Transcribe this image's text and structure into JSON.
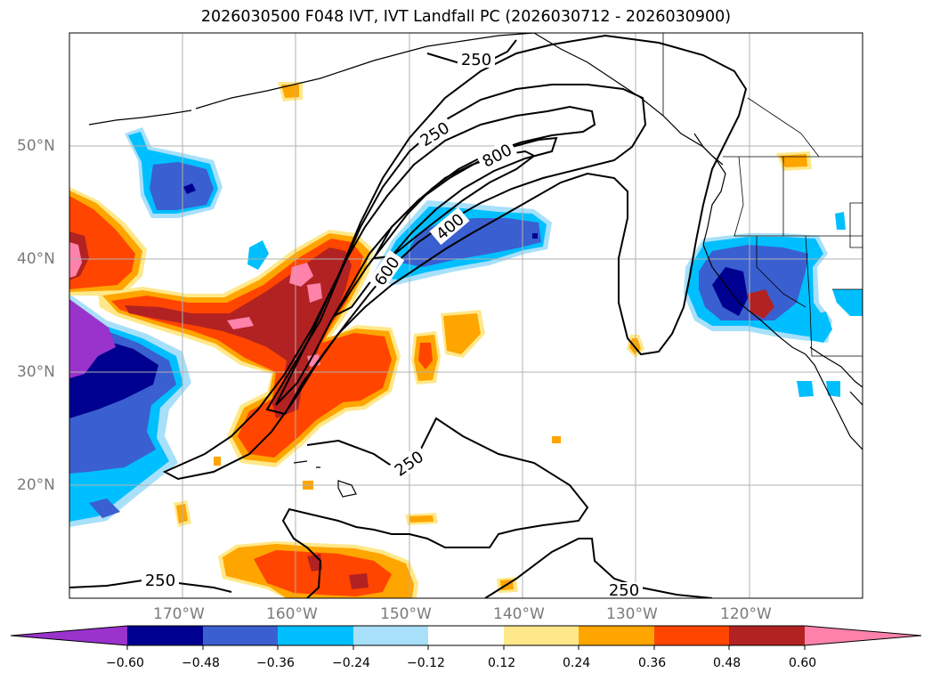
{
  "title": "2026030500 F048 IVT, IVT Landfall PC (2026030712 - 2026030900)",
  "map": {
    "lon_range": [
      -180,
      -110
    ],
    "lat_range": [
      10,
      60
    ],
    "lat_labels": [
      "50°N",
      "40°N",
      "30°N",
      "20°N"
    ],
    "lat_values": [
      50,
      40,
      30,
      20
    ],
    "lon_labels": [
      "170°W",
      "160°W",
      "150°W",
      "140°W",
      "130°W",
      "120°W"
    ],
    "lon_values": [
      -170,
      -160,
      -150,
      -140,
      -130,
      -120
    ],
    "gridlines": true,
    "contour_labels": [
      "250",
      "250",
      "800",
      "400",
      "600",
      "250",
      "250",
      "250"
    ]
  },
  "colorbar": {
    "ticks": [
      "−0.60",
      "−0.48",
      "−0.36",
      "−0.24",
      "−0.12",
      "0.12",
      "0.24",
      "0.36",
      "0.48",
      "0.60"
    ],
    "colors": [
      "#9933cc",
      "#000090",
      "#3a5fd0",
      "#00bfff",
      "#a8e0fa",
      "#ffffff",
      "#ffe88a",
      "#ffa500",
      "#ff4500",
      "#b22222",
      "#ff82ab"
    ],
    "extend": "both"
  },
  "colors": {
    "purple": "#9933cc",
    "navy": "#000090",
    "royal": "#3a5fd0",
    "sky": "#00bfff",
    "pale_blue": "#a8e0fa",
    "pale_yellow": "#ffe88a",
    "orange": "#ffa500",
    "red_orange": "#ff4500",
    "dark_red": "#b22222",
    "pink": "#ff82ab"
  }
}
